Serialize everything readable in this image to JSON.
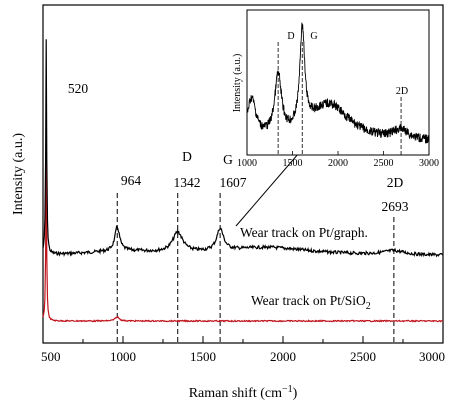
{
  "chart_data": [
    {
      "type": "line",
      "xlabel": "Raman shift (cm",
      "xlabel_sup": "−1",
      "xlabel_tail": ")",
      "ylabel": "Intensity (a.u.)",
      "xlim": [
        500,
        3000
      ],
      "xticks": [
        "500",
        "1000",
        "1500",
        "2000",
        "2500",
        "3000"
      ],
      "series": [
        {
          "name": "Wear track on Pt/graph.",
          "color": "#000000",
          "x": [
            520,
            964,
            1342,
            1607,
            2693,
            3000
          ],
          "y": [
            1.0,
            0.16,
            0.15,
            0.14,
            0.08,
            0.06
          ]
        },
        {
          "name": "Wear track on Pt/SiO",
          "name_sub": "2",
          "color": "#c0141c",
          "x": [
            520,
            964
          ],
          "y": [
            0.62,
            0.02
          ]
        }
      ],
      "peak_labels": [
        {
          "text": "520",
          "x": 520
        },
        {
          "text": "964",
          "x": 964
        },
        {
          "text": "1342",
          "x": 1342
        },
        {
          "text": "1607",
          "x": 1607
        },
        {
          "text": "2693",
          "x": 2693
        }
      ],
      "band_labels": [
        {
          "text": "D",
          "x": 1342
        },
        {
          "text": "G",
          "x": 1607
        },
        {
          "text": "2D",
          "x": 2693
        }
      ],
      "grid": false
    },
    {
      "type": "line",
      "inset": true,
      "xlabel": "",
      "ylabel": "Intensity (a.u.)",
      "xlim": [
        1000,
        3000
      ],
      "xticks": [
        "1000",
        "1500",
        "2000",
        "2500",
        "3000"
      ],
      "band_labels": [
        {
          "text": "D",
          "x": 1342
        },
        {
          "text": "G",
          "x": 1607
        },
        {
          "text": "2D",
          "x": 2693
        }
      ],
      "grid": false
    }
  ]
}
